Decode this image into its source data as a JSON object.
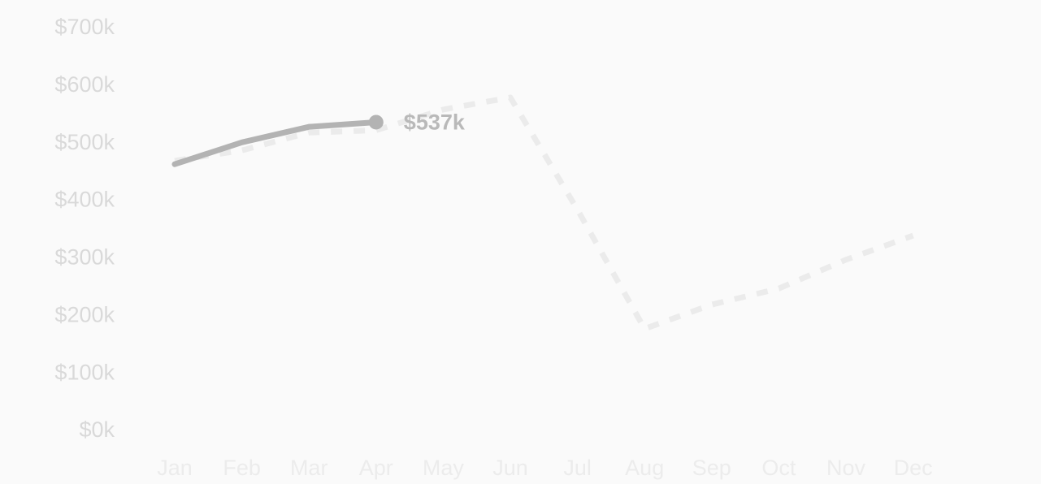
{
  "chart_data": {
    "type": "line",
    "categories": [
      "Jan",
      "Feb",
      "Mar",
      "Apr",
      "May",
      "Jun",
      "Jul",
      "Aug",
      "Sep",
      "Oct",
      "Nov",
      "Dec"
    ],
    "series": [
      {
        "color": "#b3b3b3",
        "line_style": "solid",
        "values": [
          464,
          502,
          529,
          537,
          null,
          null,
          null,
          null,
          null,
          null,
          null,
          null
        ],
        "value_labels": [
          null,
          null,
          null,
          "$537k",
          null,
          null,
          null,
          null,
          null,
          null,
          null,
          null
        ]
      },
      {
        "color": "#ebebeb",
        "line_style": "dashed",
        "values": [
          470,
          488,
          519,
          523,
          559,
          580,
          385,
          178,
          220,
          248,
          298,
          340
        ]
      }
    ],
    "ylim": [
      0,
      700
    ],
    "yticks": [
      {
        "value": 0,
        "label": "$0k"
      },
      {
        "value": 100,
        "label": "$100k"
      },
      {
        "value": 200,
        "label": "$200k"
      },
      {
        "value": 300,
        "label": "$300k"
      },
      {
        "value": 400,
        "label": "$400k"
      },
      {
        "value": 500,
        "label": "$500k"
      },
      {
        "value": 600,
        "label": "$600k"
      },
      {
        "value": 700,
        "label": "$700k"
      }
    ]
  }
}
